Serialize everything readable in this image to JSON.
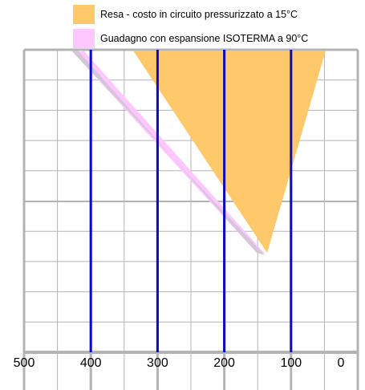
{
  "legend": [
    {
      "label": "Resa - costo in circuito pressurizzato a 15°C",
      "color": "#ffc86b"
    },
    {
      "label": "Guadagno con espansione ISOTERMA a 90°C",
      "color": "#ffc6ff"
    }
  ],
  "chart_data": {
    "type": "area",
    "xlim": [
      500,
      0
    ],
    "x_ticks": [
      "500",
      "400",
      "300",
      "200",
      "100",
      "0"
    ],
    "x_tick_values": [
      500,
      400,
      300,
      200,
      100,
      0
    ],
    "vertical_lines": [
      400,
      300,
      200,
      100
    ],
    "grid": true,
    "legend_placement": "top",
    "colors": {
      "grid": "#b3b3b3",
      "vlines": "#0a0ac8",
      "orange": "#ffc86b",
      "pink": "#ffc6ff"
    }
  }
}
